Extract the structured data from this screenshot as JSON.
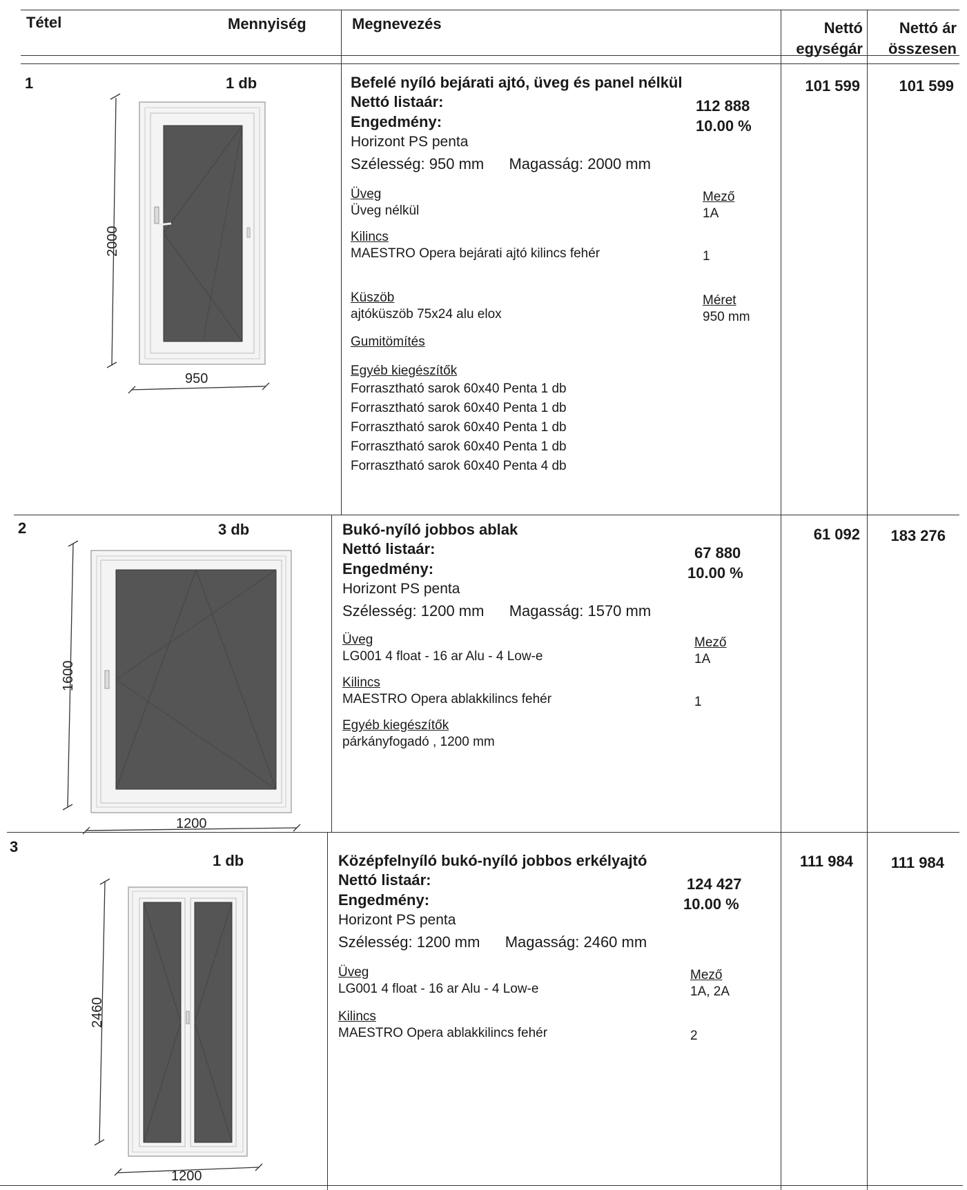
{
  "header": {
    "item": "Tétel",
    "quantity": "Mennyiség",
    "name": "Megnevezés",
    "unit_price_1": "Nettó",
    "unit_price_2": "egységár",
    "total_price_1": "Nettó ár",
    "total_price_2": "összesen"
  },
  "items": [
    {
      "num": "1",
      "qty": "1 db",
      "title": "Befelé nyíló bejárati ajtó, üveg és panel nélkül",
      "list_price_label": "Nettó listaár:",
      "list_price": "112 888",
      "discount_label": "Engedmény:",
      "discount": "10.00 %",
      "profile": "Horizont PS penta",
      "width_label": "Szélesség:",
      "width": "950 mm",
      "height_label": "Magasság:",
      "height": "2000 mm",
      "glass_label": "Üveg",
      "glass": "Üveg nélkül",
      "field_label": "Mező",
      "field": "1A",
      "handle_label": "Kilincs",
      "handle": "MAESTRO Opera bejárati ajtó kilincs fehér",
      "handle_qty": "1",
      "threshold_label": "Küszöb",
      "threshold": "ajtóküszöb 75x24 alu elox",
      "size_label": "Méret",
      "size": "950 mm",
      "seal_label": "Gumitömítés",
      "acc_label": "Egyéb kiegészítők",
      "accessories": [
        "Forrasztható sarok 60x40 Penta 1 db",
        "Forrasztható sarok 60x40 Penta 1 db",
        "Forrasztható sarok 60x40 Penta 1 db",
        "Forrasztható sarok 60x40 Penta 1 db",
        "Forrasztható sarok 60x40 Penta 4 db"
      ],
      "unit_price": "101 599",
      "total_price": "101 599",
      "dim_h": "2000",
      "dim_w": "950"
    },
    {
      "num": "2",
      "qty": "3 db",
      "title": "Bukó-nyíló jobbos ablak",
      "list_price_label": "Nettó listaár:",
      "list_price": "67 880",
      "discount_label": "Engedmény:",
      "discount": "10.00 %",
      "profile": "Horizont PS penta",
      "width_label": "Szélesség:",
      "width": "1200 mm",
      "height_label": "Magasság:",
      "height": "1570 mm",
      "glass_label": "Üveg",
      "glass": "LG001 4 float - 16 ar Alu - 4 Low-e",
      "field_label": "Mező",
      "field": "1A",
      "handle_label": "Kilincs",
      "handle": "MAESTRO Opera ablakkilincs fehér",
      "handle_qty": "1",
      "acc_label": "Egyéb kiegészítők",
      "accessories": [
        "párkányfogadó , 1200 mm"
      ],
      "unit_price": "61 092",
      "total_price": "183 276",
      "dim_h": "1600",
      "dim_w": "1200"
    },
    {
      "num": "3",
      "qty": "1 db",
      "title": "Középfelnyíló bukó-nyíló jobbos erkélyajtó",
      "list_price_label": "Nettó listaár:",
      "list_price": "124 427",
      "discount_label": "Engedmény:",
      "discount": "10.00 %",
      "profile": "Horizont PS penta",
      "width_label": "Szélesség:",
      "width": "1200 mm",
      "height_label": "Magasság:",
      "height": "2460 mm",
      "glass_label": "Üveg",
      "glass": "LG001 4 float - 16 ar Alu - 4 Low-e",
      "field_label": "Mező",
      "field": "1A, 2A",
      "handle_label": "Kilincs",
      "handle": "MAESTRO Opera ablakkilincs fehér",
      "handle_qty": "2",
      "unit_price": "111 984",
      "total_price": "111 984",
      "dim_h": "2460",
      "dim_w": "1200"
    }
  ]
}
